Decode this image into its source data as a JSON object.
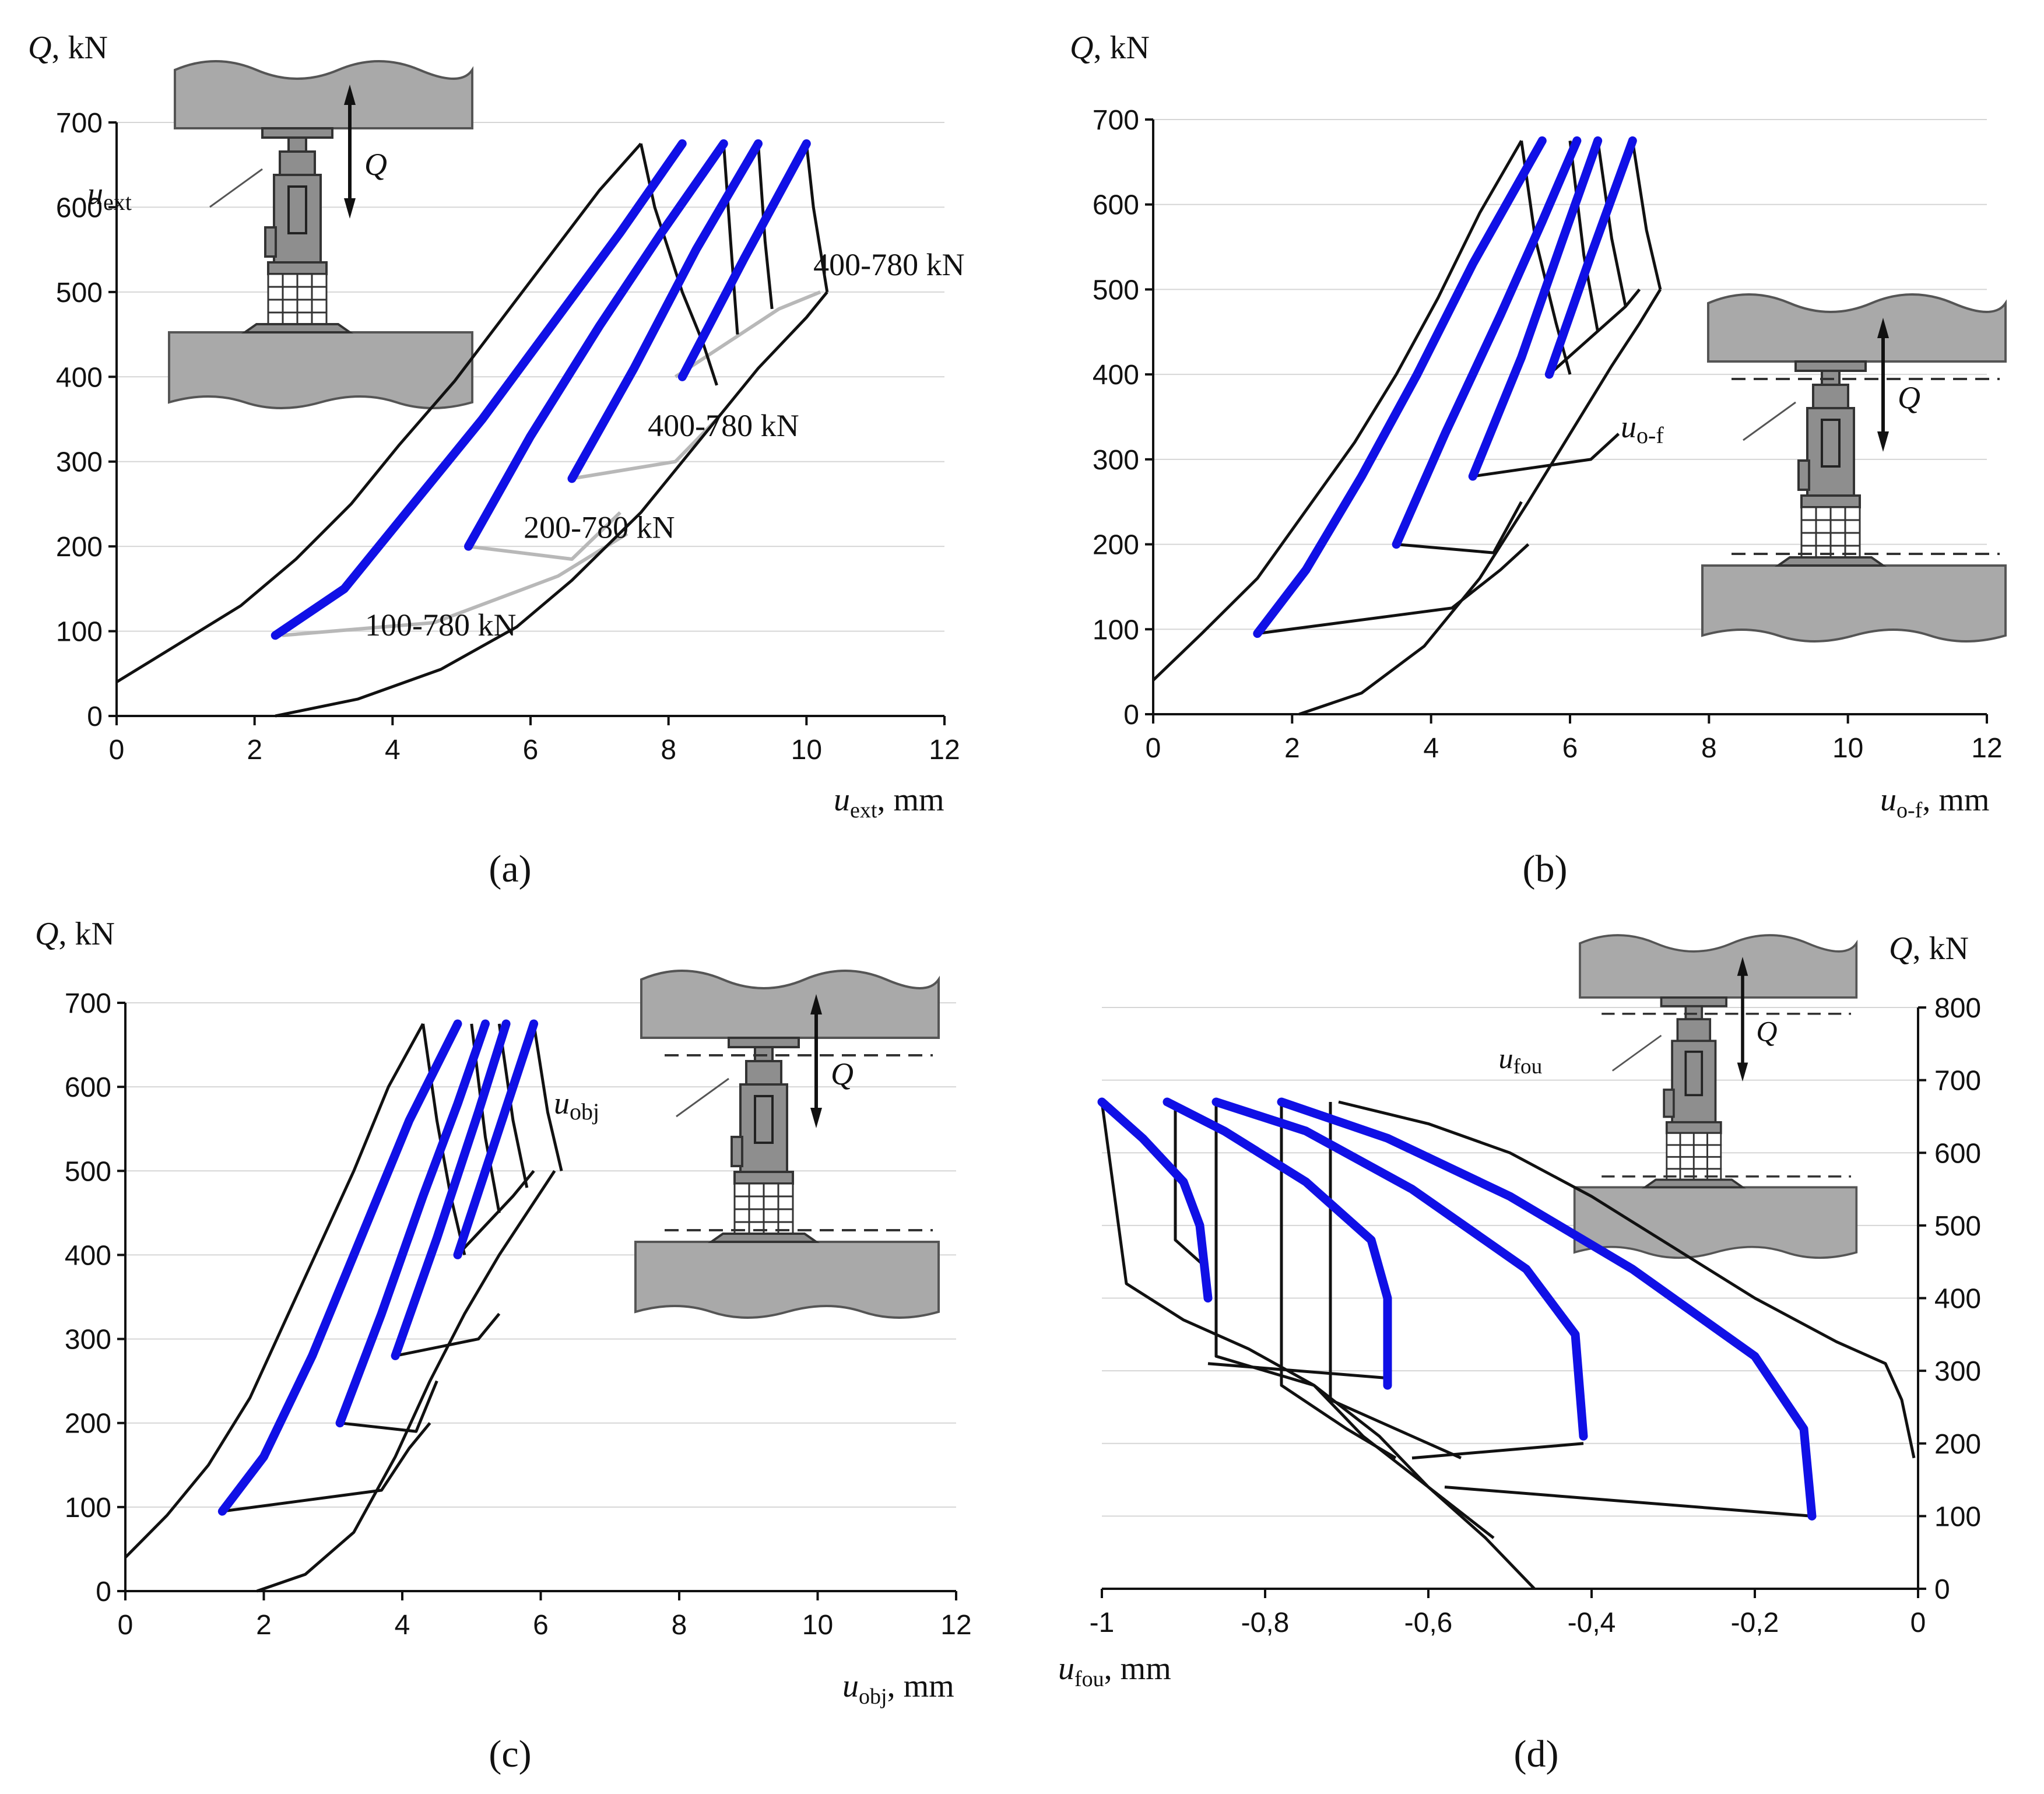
{
  "chart_data": [
    {
      "id": "a",
      "type": "line",
      "panel_label": "(a)",
      "ylabel": "Q, kN",
      "xlabel": "u",
      "xlabel_sub": "ext",
      "xlabel_unit": ", mm",
      "xlim": [
        0,
        12
      ],
      "ylim": [
        0,
        700
      ],
      "xticks": [
        0,
        2,
        4,
        6,
        8,
        10,
        12
      ],
      "yticks": [
        0,
        100,
        200,
        300,
        400,
        500,
        600,
        700
      ],
      "inset": {
        "disp_label": "u",
        "disp_sub": "ext",
        "force_label": "Q"
      },
      "annotations": [
        {
          "text": "400-780 kN",
          "x": 10.1,
          "y": 520
        },
        {
          "text": "400-780 kN",
          "x": 7.7,
          "y": 330
        },
        {
          "text": "200-780 kN",
          "x": 5.9,
          "y": 210
        },
        {
          "text": "100-780 kN",
          "x": 3.6,
          "y": 95
        }
      ],
      "series": [
        {
          "name": "envelope-load",
          "style": "black",
          "x": [
            0,
            0.9,
            1.8,
            2.6,
            3.4,
            4.1,
            4.9,
            5.6,
            6.3,
            7.0,
            7.6
          ],
          "y": [
            40,
            85,
            130,
            185,
            250,
            320,
            395,
            470,
            545,
            620,
            675
          ]
        },
        {
          "name": "envelope-unload",
          "style": "black",
          "x": [
            7.6,
            7.8,
            8.2,
            8.5,
            8.7
          ],
          "y": [
            675,
            600,
            500,
            440,
            390
          ]
        },
        {
          "name": "reload-envelope",
          "style": "black",
          "x": [
            2.3,
            3.5,
            4.7,
            5.8,
            6.6,
            7.6,
            8.5,
            9.3,
            10.0,
            10.3
          ],
          "y": [
            0,
            20,
            55,
            105,
            160,
            240,
            330,
            410,
            470,
            500
          ]
        },
        {
          "name": "unload-4",
          "style": "black",
          "x": [
            10.0,
            10.1,
            10.2,
            10.3
          ],
          "y": [
            675,
            600,
            550,
            500
          ]
        },
        {
          "name": "unload-3",
          "style": "black",
          "x": [
            9.3,
            9.4,
            9.5
          ],
          "y": [
            675,
            560,
            480
          ]
        },
        {
          "name": "unload-2",
          "style": "black",
          "x": [
            8.8,
            8.9,
            9.0
          ],
          "y": [
            675,
            560,
            450
          ]
        },
        {
          "name": "cycle-100-780",
          "style": "gray",
          "x": [
            2.4,
            4.6,
            6.4,
            7.4
          ],
          "y": [
            95,
            110,
            165,
            215
          ]
        },
        {
          "name": "cycle-200-780",
          "style": "gray",
          "x": [
            5.1,
            6.6,
            7.3
          ],
          "y": [
            200,
            185,
            240
          ]
        },
        {
          "name": "cycle-400-780-a",
          "style": "gray",
          "x": [
            6.6,
            8.1,
            8.7
          ],
          "y": [
            280,
            300,
            350
          ]
        },
        {
          "name": "cycle-400-780-b",
          "style": "gray",
          "x": [
            8.1,
            9.6,
            10.2
          ],
          "y": [
            400,
            480,
            500
          ]
        },
        {
          "name": "reload-1",
          "style": "blue",
          "x": [
            2.3,
            3.3,
            4.3,
            5.3,
            6.3,
            7.3,
            8.2
          ],
          "y": [
            95,
            150,
            250,
            350,
            460,
            570,
            675
          ]
        },
        {
          "name": "reload-2",
          "style": "blue",
          "x": [
            5.1,
            6.0,
            7.0,
            7.9,
            8.8
          ],
          "y": [
            200,
            330,
            460,
            570,
            675
          ]
        },
        {
          "name": "reload-3",
          "style": "blue",
          "x": [
            6.6,
            7.5,
            8.4,
            9.3
          ],
          "y": [
            280,
            410,
            550,
            675
          ]
        },
        {
          "name": "reload-4",
          "style": "blue",
          "x": [
            8.2,
            9.1,
            10.0
          ],
          "y": [
            400,
            540,
            675
          ]
        }
      ]
    },
    {
      "id": "b",
      "type": "line",
      "panel_label": "(b)",
      "ylabel": "Q, kN",
      "xlabel": "u",
      "xlabel_sub": "o-f",
      "xlabel_unit": ", mm",
      "xlim": [
        0,
        12
      ],
      "ylim": [
        0,
        700
      ],
      "xticks": [
        0,
        2,
        4,
        6,
        8,
        10,
        12
      ],
      "yticks": [
        0,
        100,
        200,
        300,
        400,
        500,
        600,
        700
      ],
      "inset": {
        "disp_label": "u",
        "disp_sub": "o-f",
        "force_label": "Q"
      },
      "annotations": [],
      "series": [
        {
          "name": "envelope-load",
          "style": "black",
          "x": [
            0,
            0.7,
            1.5,
            2.2,
            2.9,
            3.5,
            4.1,
            4.7,
            5.3
          ],
          "y": [
            40,
            95,
            160,
            240,
            320,
            400,
            490,
            590,
            675
          ]
        },
        {
          "name": "envelope-unload",
          "style": "black",
          "x": [
            5.3,
            5.5,
            5.8,
            6.0
          ],
          "y": [
            675,
            560,
            460,
            400
          ]
        },
        {
          "name": "reload-envelope",
          "style": "black",
          "x": [
            2.1,
            3.0,
            3.9,
            4.7,
            5.4,
            6.0,
            6.6,
            7.0,
            7.3
          ],
          "y": [
            0,
            25,
            80,
            160,
            250,
            330,
            410,
            460,
            500
          ]
        },
        {
          "name": "unload-4",
          "style": "black",
          "x": [
            6.9,
            7.1,
            7.3
          ],
          "y": [
            675,
            570,
            500
          ]
        },
        {
          "name": "unload-3",
          "style": "black",
          "x": [
            6.4,
            6.6,
            6.8
          ],
          "y": [
            675,
            560,
            480
          ]
        },
        {
          "name": "unload-2",
          "style": "black",
          "x": [
            6.0,
            6.2,
            6.4
          ],
          "y": [
            675,
            540,
            450
          ]
        },
        {
          "name": "cycle-100-780",
          "style": "black",
          "x": [
            1.5,
            4.3,
            5.0,
            5.4
          ],
          "y": [
            95,
            125,
            170,
            200
          ]
        },
        {
          "name": "cycle-200-780",
          "style": "black",
          "x": [
            3.5,
            4.9,
            5.3
          ],
          "y": [
            200,
            190,
            250
          ]
        },
        {
          "name": "cycle-400-780-a",
          "style": "black",
          "x": [
            4.6,
            6.3,
            6.7
          ],
          "y": [
            280,
            300,
            330
          ]
        },
        {
          "name": "cycle-400-780-b",
          "style": "black",
          "x": [
            5.7,
            6.8,
            7.0
          ],
          "y": [
            400,
            480,
            500
          ]
        },
        {
          "name": "reload-1",
          "style": "blue",
          "x": [
            1.5,
            2.2,
            3.0,
            3.8,
            4.6,
            5.6
          ],
          "y": [
            95,
            170,
            280,
            400,
            530,
            675
          ]
        },
        {
          "name": "reload-2",
          "style": "blue",
          "x": [
            3.5,
            4.2,
            5.0,
            5.6,
            6.1
          ],
          "y": [
            200,
            330,
            470,
            580,
            675
          ]
        },
        {
          "name": "reload-3",
          "style": "blue",
          "x": [
            4.6,
            5.3,
            5.9,
            6.4
          ],
          "y": [
            280,
            420,
            560,
            675
          ]
        },
        {
          "name": "reload-4",
          "style": "blue",
          "x": [
            5.7,
            6.3,
            6.9
          ],
          "y": [
            400,
            540,
            675
          ]
        }
      ]
    },
    {
      "id": "c",
      "type": "line",
      "panel_label": "(c)",
      "ylabel": "Q, kN",
      "xlabel": "u",
      "xlabel_sub": "obj",
      "xlabel_unit": ", mm",
      "xlim": [
        0,
        12
      ],
      "ylim": [
        0,
        700
      ],
      "xticks": [
        0,
        2,
        4,
        6,
        8,
        10,
        12
      ],
      "yticks": [
        0,
        100,
        200,
        300,
        400,
        500,
        600,
        700
      ],
      "inset": {
        "disp_label": "u",
        "disp_sub": "obj",
        "force_label": "Q"
      },
      "annotations": [],
      "series": [
        {
          "name": "envelope-load",
          "style": "black",
          "x": [
            0,
            0.6,
            1.2,
            1.8,
            2.3,
            2.8,
            3.3,
            3.8,
            4.3
          ],
          "y": [
            40,
            90,
            150,
            230,
            320,
            410,
            500,
            600,
            675
          ]
        },
        {
          "name": "envelope-unload",
          "style": "black",
          "x": [
            4.3,
            4.5,
            4.7,
            4.9
          ],
          "y": [
            675,
            560,
            470,
            400
          ]
        },
        {
          "name": "reload-envelope",
          "style": "black",
          "x": [
            1.9,
            2.6,
            3.3,
            3.9,
            4.4,
            4.9,
            5.4,
            5.8,
            6.2
          ],
          "y": [
            0,
            20,
            70,
            160,
            250,
            330,
            400,
            450,
            500
          ]
        },
        {
          "name": "unload-4",
          "style": "black",
          "x": [
            5.9,
            6.1,
            6.3
          ],
          "y": [
            675,
            570,
            500
          ]
        },
        {
          "name": "unload-3",
          "style": "black",
          "x": [
            5.4,
            5.6,
            5.8
          ],
          "y": [
            675,
            560,
            480
          ]
        },
        {
          "name": "unload-2",
          "style": "black",
          "x": [
            5.0,
            5.2,
            5.4
          ],
          "y": [
            675,
            540,
            450
          ]
        },
        {
          "name": "cycle-100-780",
          "style": "black",
          "x": [
            1.4,
            3.7,
            4.1,
            4.4
          ],
          "y": [
            95,
            120,
            170,
            200
          ]
        },
        {
          "name": "cycle-200-780",
          "style": "black",
          "x": [
            3.1,
            4.2,
            4.5
          ],
          "y": [
            200,
            190,
            250
          ]
        },
        {
          "name": "cycle-400-780-a",
          "style": "black",
          "x": [
            3.9,
            5.1,
            5.4
          ],
          "y": [
            280,
            300,
            330
          ]
        },
        {
          "name": "cycle-400-780-b",
          "style": "black",
          "x": [
            4.8,
            5.6,
            5.9
          ],
          "y": [
            400,
            470,
            500
          ]
        },
        {
          "name": "reload-1",
          "style": "blue",
          "x": [
            1.4,
            2.0,
            2.7,
            3.4,
            4.1,
            4.8
          ],
          "y": [
            95,
            160,
            280,
            420,
            560,
            675
          ]
        },
        {
          "name": "reload-2",
          "style": "blue",
          "x": [
            3.1,
            3.7,
            4.3,
            4.8,
            5.2
          ],
          "y": [
            200,
            330,
            470,
            580,
            675
          ]
        },
        {
          "name": "reload-3",
          "style": "blue",
          "x": [
            3.9,
            4.5,
            5.1,
            5.5
          ],
          "y": [
            280,
            420,
            570,
            675
          ]
        },
        {
          "name": "reload-4",
          "style": "blue",
          "x": [
            4.8,
            5.4,
            5.9
          ],
          "y": [
            400,
            550,
            675
          ]
        }
      ]
    },
    {
      "id": "d",
      "type": "line",
      "panel_label": "(d)",
      "ylabel": "Q, kN",
      "xlabel": "u",
      "xlabel_sub": "fou",
      "xlabel_unit": ", mm",
      "xlim": [
        -1,
        0
      ],
      "ylim": [
        0,
        800
      ],
      "xticks": [
        -1,
        -0.8,
        -0.6,
        -0.4,
        -0.2,
        0
      ],
      "xtick_labels": [
        "-1",
        "-0,8",
        "-0,6",
        "-0,4",
        "-0,2",
        "0"
      ],
      "yticks": [
        0,
        100,
        200,
        300,
        400,
        500,
        600,
        700,
        800
      ],
      "y_axis_side": "right",
      "inset": {
        "disp_label": "u",
        "disp_sub": "fou",
        "force_label": "Q"
      },
      "annotations": [],
      "series": [
        {
          "name": "outer-load",
          "style": "black",
          "x": [
            -0.71,
            -0.6,
            -0.5,
            -0.4,
            -0.3,
            -0.2,
            -0.1,
            -0.04,
            -0.02,
            -0.005
          ],
          "y": [
            670,
            640,
            600,
            540,
            470,
            400,
            340,
            310,
            260,
            180
          ]
        },
        {
          "name": "outer-unload",
          "style": "black",
          "x": [
            -1,
            -0.97,
            -0.9,
            -0.82,
            -0.74,
            -0.66,
            -0.6,
            -0.53,
            -0.47
          ],
          "y": [
            670,
            420,
            370,
            330,
            280,
            210,
            140,
            70,
            0
          ]
        },
        {
          "name": "drop-1",
          "style": "black",
          "x": [
            -0.91,
            -0.91,
            -0.87
          ],
          "y": [
            670,
            480,
            440
          ]
        },
        {
          "name": "drop-2",
          "style": "black",
          "x": [
            -0.86,
            -0.86,
            -0.74,
            -0.68,
            -0.6,
            -0.52
          ],
          "y": [
            670,
            320,
            280,
            210,
            140,
            70
          ]
        },
        {
          "name": "drop-3",
          "style": "black",
          "x": [
            -0.78,
            -0.78,
            -0.7,
            -0.64
          ],
          "y": [
            670,
            280,
            220,
            180
          ]
        },
        {
          "name": "drop-4",
          "style": "black",
          "x": [
            -0.72,
            -0.72,
            -0.66,
            -0.56
          ],
          "y": [
            670,
            260,
            230,
            180
          ]
        },
        {
          "name": "cycle-a",
          "style": "black",
          "x": [
            -0.87,
            -0.65
          ],
          "y": [
            310,
            290
          ]
        },
        {
          "name": "cycle-b",
          "style": "black",
          "x": [
            -0.62,
            -0.41
          ],
          "y": [
            180,
            200
          ]
        },
        {
          "name": "cycle-c",
          "style": "black",
          "x": [
            -0.58,
            -0.13
          ],
          "y": [
            140,
            100
          ]
        },
        {
          "name": "reload-1",
          "style": "blue",
          "x": [
            -1,
            -0.95,
            -0.9,
            -0.88,
            -0.87
          ],
          "y": [
            670,
            620,
            560,
            500,
            400
          ]
        },
        {
          "name": "reload-2",
          "style": "blue",
          "x": [
            -0.92,
            -0.85,
            -0.75,
            -0.67,
            -0.65,
            -0.65
          ],
          "y": [
            670,
            630,
            560,
            480,
            400,
            280
          ]
        },
        {
          "name": "reload-3",
          "style": "blue",
          "x": [
            -0.86,
            -0.75,
            -0.62,
            -0.48,
            -0.42,
            -0.41
          ],
          "y": [
            670,
            630,
            550,
            440,
            350,
            210
          ]
        },
        {
          "name": "reload-4",
          "style": "blue",
          "x": [
            -0.78,
            -0.65,
            -0.5,
            -0.35,
            -0.2,
            -0.14,
            -0.13
          ],
          "y": [
            670,
            620,
            540,
            440,
            320,
            220,
            100
          ]
        }
      ]
    }
  ]
}
